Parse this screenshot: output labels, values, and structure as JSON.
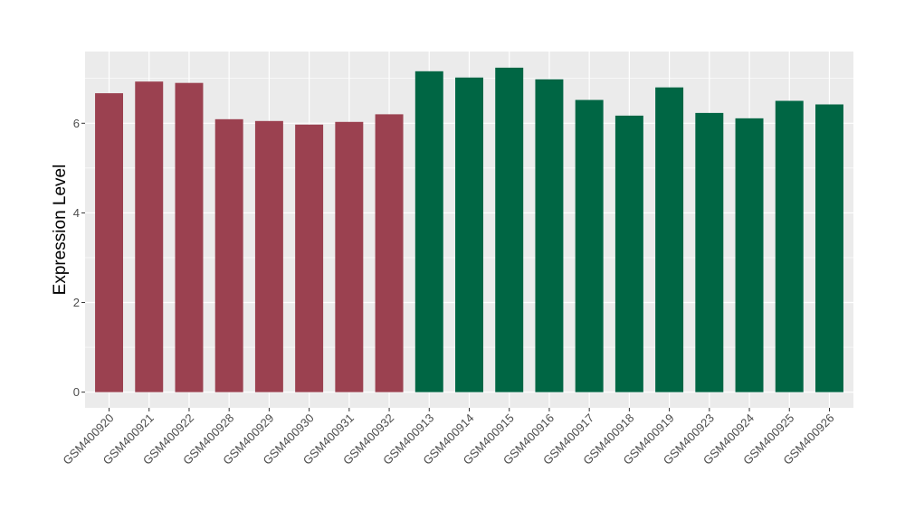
{
  "chart_data": {
    "type": "bar",
    "title": "",
    "xlabel": "",
    "ylabel": "Expression Level",
    "ylim": [
      -0.35,
      7.6
    ],
    "yticks": [
      0,
      2,
      4,
      6
    ],
    "grid": true,
    "categories": [
      "GSM400920",
      "GSM400921",
      "GSM400922",
      "GSM400928",
      "GSM400929",
      "GSM400930",
      "GSM400931",
      "GSM400932",
      "GSM400913",
      "GSM400914",
      "GSM400915",
      "GSM400916",
      "GSM400917",
      "GSM400918",
      "GSM400919",
      "GSM400923",
      "GSM400924",
      "GSM400925",
      "GSM400926"
    ],
    "values": [
      6.67,
      6.93,
      6.9,
      6.09,
      6.05,
      5.97,
      6.03,
      6.2,
      7.16,
      7.02,
      7.24,
      6.98,
      6.52,
      6.17,
      6.8,
      6.23,
      6.11,
      6.5,
      6.42
    ],
    "groups": [
      0,
      0,
      0,
      0,
      0,
      0,
      0,
      0,
      1,
      1,
      1,
      1,
      1,
      1,
      1,
      1,
      1,
      1,
      1
    ],
    "colors": [
      "#9b4150",
      "#006644"
    ],
    "panel_background": "#ebebeb",
    "grid_color": "#ffffff",
    "legend": "none"
  }
}
